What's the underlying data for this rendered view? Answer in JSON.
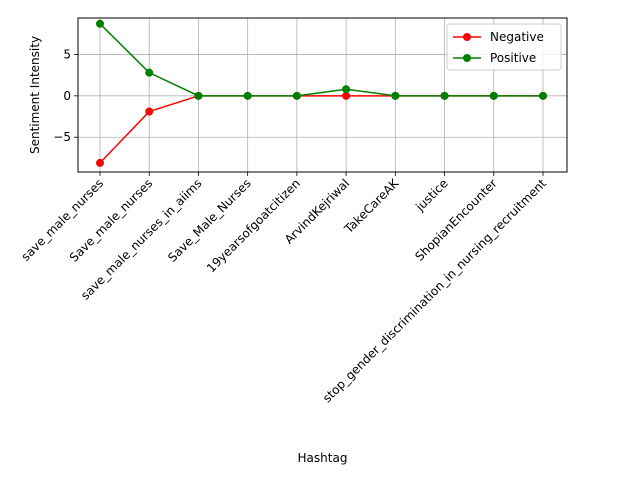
{
  "chart_data": {
    "type": "line",
    "xlabel": "Hashtag",
    "ylabel": "Sentiment Intensity",
    "categories": [
      "save_male_nurses",
      "Save_male_nurses",
      "save_male_nurses_in_aiims",
      "Save_Male_Nurses",
      "19yearsofgoatcitizen",
      "ArvindKejriwal",
      "TakeCareAK",
      "justice",
      "ShopianEncounter",
      "stop_gender_discrimination_in_nursing_recruitment"
    ],
    "series": [
      {
        "name": "Negative",
        "color": "#ff0000",
        "values": [
          -8.1,
          -1.9,
          0,
          0,
          0,
          0,
          0,
          0,
          0,
          0
        ]
      },
      {
        "name": "Positive",
        "color": "#008000",
        "values": [
          8.7,
          2.8,
          0,
          0,
          0,
          0.8,
          0,
          0,
          0,
          0
        ]
      }
    ],
    "ylim": [
      -9.2,
      9.4
    ],
    "yticks": [
      -5,
      0,
      5
    ],
    "grid": true,
    "legend_position": "top-right"
  }
}
